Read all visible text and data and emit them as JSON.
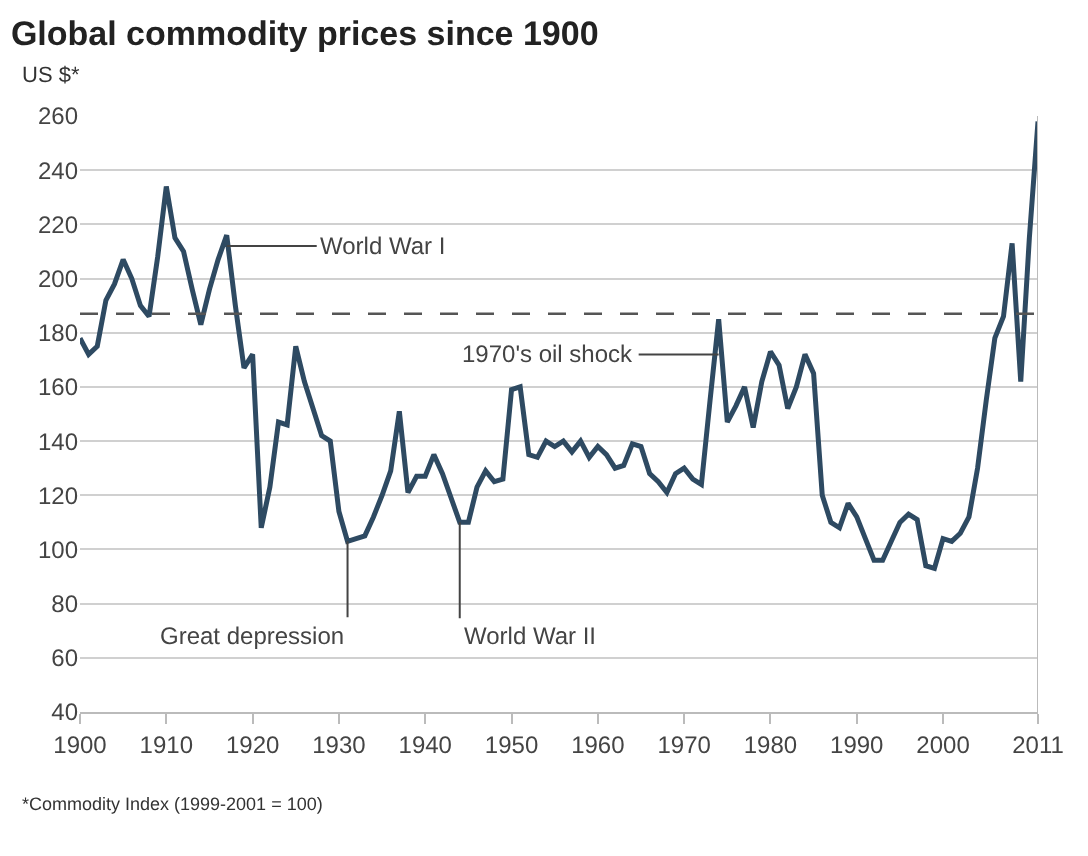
{
  "chart_data": {
    "type": "line",
    "title": "Global commodity prices since 1900",
    "ylabel": "US $*",
    "x": [
      1900,
      1901,
      1902,
      1903,
      1904,
      1905,
      1906,
      1907,
      1908,
      1909,
      1910,
      1911,
      1912,
      1913,
      1914,
      1915,
      1916,
      1917,
      1918,
      1919,
      1920,
      1921,
      1922,
      1923,
      1924,
      1925,
      1926,
      1927,
      1928,
      1929,
      1930,
      1931,
      1932,
      1933,
      1934,
      1935,
      1936,
      1937,
      1938,
      1939,
      1940,
      1941,
      1942,
      1943,
      1944,
      1945,
      1946,
      1947,
      1948,
      1949,
      1950,
      1951,
      1952,
      1953,
      1954,
      1955,
      1956,
      1957,
      1958,
      1959,
      1960,
      1961,
      1962,
      1963,
      1964,
      1965,
      1966,
      1967,
      1968,
      1969,
      1970,
      1971,
      1972,
      1973,
      1974,
      1975,
      1976,
      1977,
      1978,
      1979,
      1980,
      1981,
      1982,
      1983,
      1984,
      1985,
      1986,
      1987,
      1988,
      1989,
      1990,
      1991,
      1992,
      1993,
      1994,
      1995,
      1996,
      1997,
      1998,
      1999,
      2000,
      2001,
      2002,
      2003,
      2004,
      2005,
      2006,
      2007,
      2008,
      2009,
      2010,
      2011
    ],
    "series": [
      {
        "color": "#2e4a62",
        "values": [
          178,
          172,
          175,
          192,
          198,
          207,
          200,
          190,
          186,
          208,
          234,
          215,
          210,
          196,
          183,
          196,
          207,
          216,
          190,
          167,
          172,
          108,
          123,
          147,
          146,
          175,
          162,
          152,
          142,
          140,
          114,
          103,
          104,
          105,
          112,
          120,
          129,
          151,
          121,
          127,
          127,
          135,
          128,
          119,
          110,
          110,
          123,
          129,
          125,
          126,
          159,
          160,
          135,
          134,
          140,
          138,
          140,
          136,
          140,
          134,
          138,
          135,
          130,
          131,
          139,
          138,
          128,
          125,
          121,
          128,
          130,
          126,
          124,
          155,
          185,
          147,
          153,
          160,
          145,
          162,
          173,
          168,
          152,
          160,
          172,
          165,
          120,
          110,
          108,
          117,
          112,
          104,
          96,
          96,
          103,
          110,
          113,
          111,
          94,
          93,
          104,
          103,
          106,
          112,
          130,
          155,
          178,
          186,
          213,
          162,
          215,
          258
        ]
      }
    ],
    "xlim": [
      1900,
      2011
    ],
    "xticks": [
      1900,
      1910,
      1920,
      1930,
      1940,
      1950,
      1960,
      1970,
      1980,
      1990,
      2000,
      2011
    ],
    "ylim": [
      40,
      260
    ],
    "yticks": [
      40,
      60,
      80,
      100,
      120,
      140,
      160,
      180,
      200,
      220,
      240,
      260
    ],
    "grid": "y",
    "marker": "none",
    "line_style": "solid",
    "ref_lines": [
      {
        "axis": "y",
        "value": 187,
        "color": "#555555",
        "line_style": "dashed"
      }
    ],
    "annotations": [
      {
        "text": "World War I",
        "x": 1917,
        "y": 212
      },
      {
        "text": "1970's oil shock",
        "x": 1974,
        "y": 172
      },
      {
        "text": "Great depression",
        "x": 1931,
        "y": 103
      },
      {
        "text": "World War II",
        "x": 1944,
        "y": 110
      },
      "*Commodity Index (1999-2001 = 100)"
    ]
  }
}
